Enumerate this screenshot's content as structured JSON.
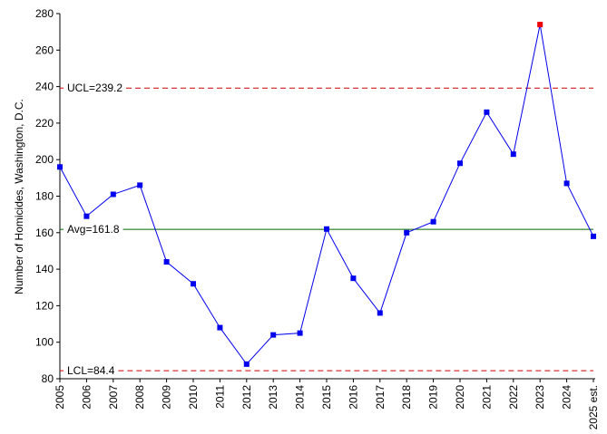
{
  "chart_data": {
    "type": "line",
    "title": "",
    "xlabel": "",
    "ylabel": "Number of Homicides,  Washington, D.C.",
    "ylim": [
      80,
      280
    ],
    "yticks": [
      80,
      100,
      120,
      140,
      160,
      180,
      200,
      220,
      240,
      260,
      280
    ],
    "grid": false,
    "categories": [
      "2005",
      "2006",
      "2007",
      "2008",
      "2009",
      "2010",
      "2011",
      "2012",
      "2013",
      "2014",
      "2015",
      "2016",
      "2017",
      "2018",
      "2019",
      "2020",
      "2021",
      "2022",
      "2023",
      "2024",
      "2025 est."
    ],
    "series": [
      {
        "name": "",
        "values": [
          196,
          169,
          181,
          186,
          144,
          132,
          108,
          88,
          104,
          105,
          162,
          135,
          116,
          160,
          166,
          198,
          226,
          203,
          274,
          187,
          158
        ],
        "color": "#0000ee",
        "highlight_index": 18,
        "highlight_color": "#ee0000"
      }
    ],
    "reference_lines": [
      {
        "label": "UCL=239.2",
        "value": 239.2,
        "color": "#cc0000",
        "style": "dashed"
      },
      {
        "label": "Avg=161.8",
        "value": 161.8,
        "color": "#006600",
        "style": "solid"
      },
      {
        "label": "LCL=84.4",
        "value": 84.4,
        "color": "#cc0000",
        "style": "dashed"
      }
    ]
  }
}
